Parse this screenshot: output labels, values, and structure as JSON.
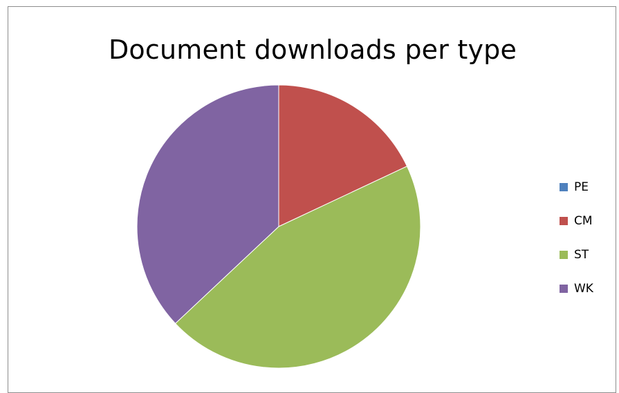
{
  "chart_data": {
    "type": "pie",
    "title": "Document downloads per type",
    "categories": [
      "PE",
      "CM",
      "ST",
      "WK"
    ],
    "values": [
      0,
      18,
      45,
      37
    ],
    "colors": [
      "#4f81bd",
      "#c0504d",
      "#9bbb59",
      "#8064a2"
    ],
    "start_angle_deg": 0,
    "direction": "clockwise",
    "legend_position": "right"
  }
}
